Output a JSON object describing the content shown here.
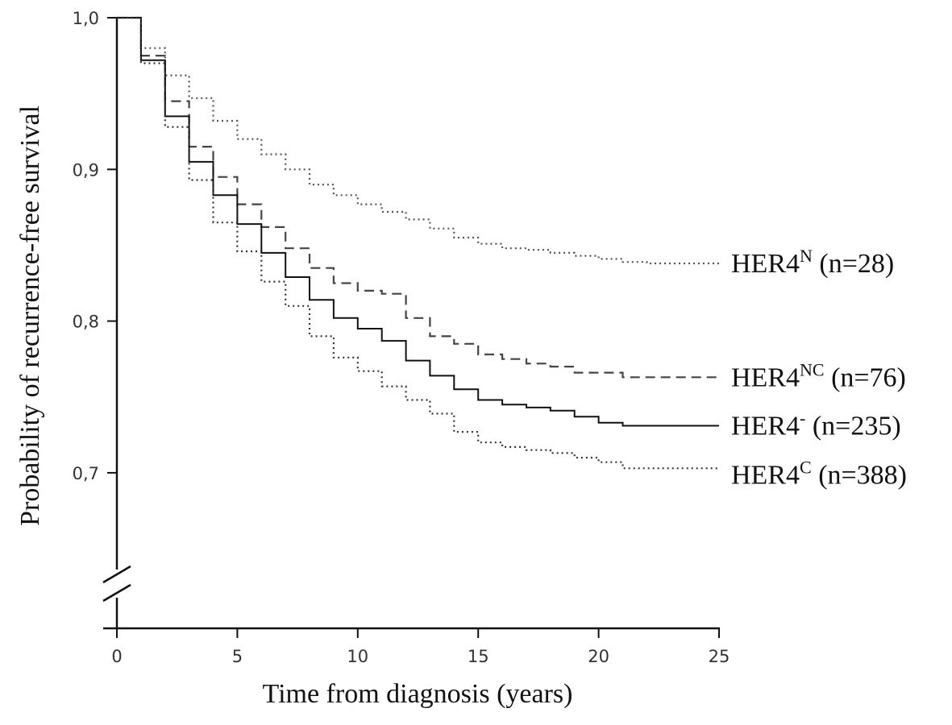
{
  "chart_data": {
    "type": "line",
    "title": "",
    "xlabel": "Time from diagnosis (years)",
    "ylabel": "Probability of recurrence-free survival",
    "xlim": [
      0,
      25
    ],
    "ylim": [
      0.7,
      1.0
    ],
    "x_ticks": [
      0,
      5,
      10,
      15,
      20,
      25
    ],
    "x_tick_labels": [
      "0",
      "5",
      "10",
      "15",
      "20",
      "25"
    ],
    "y_ticks": [
      0.7,
      0.8,
      0.9,
      1.0
    ],
    "y_tick_labels": [
      "0,7",
      "0,8",
      "0,9",
      "1,0"
    ],
    "axis_break": "y",
    "grid": false,
    "legend": "none",
    "series": [
      {
        "name": "HER4",
        "label_sup": "N",
        "label_rest": " (n=28)",
        "style": "dotted",
        "color": "#555555",
        "points": [
          [
            0,
            1.0
          ],
          [
            1,
            0.98
          ],
          [
            2,
            0.962
          ],
          [
            3,
            0.947
          ],
          [
            4,
            0.932
          ],
          [
            5,
            0.92
          ],
          [
            6,
            0.91
          ],
          [
            7,
            0.9
          ],
          [
            8,
            0.89
          ],
          [
            9,
            0.883
          ],
          [
            10,
            0.877
          ],
          [
            11,
            0.872
          ],
          [
            12,
            0.867
          ],
          [
            13,
            0.861
          ],
          [
            14,
            0.855
          ],
          [
            15,
            0.851
          ],
          [
            16,
            0.848
          ],
          [
            17,
            0.847
          ],
          [
            18,
            0.845
          ],
          [
            19,
            0.843
          ],
          [
            20,
            0.841
          ],
          [
            21,
            0.839
          ],
          [
            22,
            0.838
          ],
          [
            23,
            0.838
          ],
          [
            24,
            0.838
          ],
          [
            25,
            0.838
          ]
        ]
      },
      {
        "name": "HER4",
        "label_sup": "NC",
        "label_rest": " (n=76)",
        "style": "dashed",
        "color": "#444444",
        "points": [
          [
            0,
            1.0
          ],
          [
            1,
            0.975
          ],
          [
            2,
            0.945
          ],
          [
            3,
            0.915
          ],
          [
            4,
            0.895
          ],
          [
            5,
            0.877
          ],
          [
            6,
            0.862
          ],
          [
            7,
            0.848
          ],
          [
            8,
            0.835
          ],
          [
            9,
            0.825
          ],
          [
            10,
            0.82
          ],
          [
            11,
            0.818
          ],
          [
            12,
            0.802
          ],
          [
            13,
            0.79
          ],
          [
            14,
            0.785
          ],
          [
            15,
            0.778
          ],
          [
            16,
            0.775
          ],
          [
            17,
            0.772
          ],
          [
            18,
            0.77
          ],
          [
            19,
            0.766
          ],
          [
            20,
            0.766
          ],
          [
            21,
            0.763
          ],
          [
            22,
            0.763
          ],
          [
            23,
            0.763
          ],
          [
            24,
            0.763
          ],
          [
            25,
            0.763
          ]
        ]
      },
      {
        "name": "HER4",
        "label_sup": "-",
        "label_rest": " (n=235)",
        "style": "solid",
        "color": "#111111",
        "points": [
          [
            0,
            1.0
          ],
          [
            1,
            0.972
          ],
          [
            2,
            0.935
          ],
          [
            3,
            0.905
          ],
          [
            4,
            0.883
          ],
          [
            5,
            0.864
          ],
          [
            6,
            0.845
          ],
          [
            7,
            0.829
          ],
          [
            8,
            0.814
          ],
          [
            9,
            0.802
          ],
          [
            10,
            0.795
          ],
          [
            11,
            0.787
          ],
          [
            12,
            0.774
          ],
          [
            13,
            0.764
          ],
          [
            14,
            0.755
          ],
          [
            15,
            0.748
          ],
          [
            16,
            0.745
          ],
          [
            17,
            0.743
          ],
          [
            18,
            0.741
          ],
          [
            19,
            0.737
          ],
          [
            20,
            0.733
          ],
          [
            21,
            0.731
          ],
          [
            22,
            0.731
          ],
          [
            23,
            0.731
          ],
          [
            24,
            0.731
          ],
          [
            25,
            0.731
          ]
        ]
      },
      {
        "name": "HER4",
        "label_sup": "C",
        "label_rest": " (n=388)",
        "style": "dotted",
        "color": "#333333",
        "points": [
          [
            0,
            1.0
          ],
          [
            1,
            0.97
          ],
          [
            2,
            0.928
          ],
          [
            3,
            0.893
          ],
          [
            4,
            0.865
          ],
          [
            5,
            0.846
          ],
          [
            6,
            0.826
          ],
          [
            7,
            0.81
          ],
          [
            8,
            0.79
          ],
          [
            9,
            0.776
          ],
          [
            10,
            0.767
          ],
          [
            11,
            0.757
          ],
          [
            12,
            0.748
          ],
          [
            13,
            0.739
          ],
          [
            14,
            0.727
          ],
          [
            15,
            0.72
          ],
          [
            16,
            0.717
          ],
          [
            17,
            0.715
          ],
          [
            18,
            0.713
          ],
          [
            19,
            0.71
          ],
          [
            20,
            0.707
          ],
          [
            21,
            0.703
          ],
          [
            22,
            0.703
          ],
          [
            23,
            0.703
          ],
          [
            24,
            0.703
          ],
          [
            25,
            0.703
          ]
        ]
      }
    ]
  }
}
